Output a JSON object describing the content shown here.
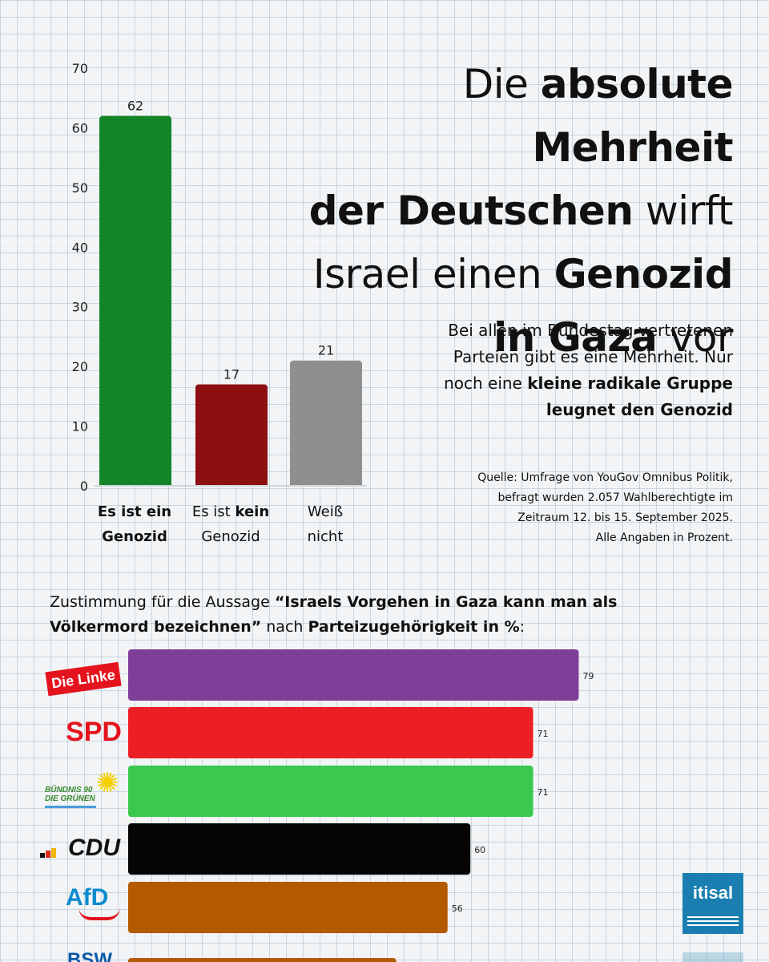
{
  "headline": {
    "p1": "Die ",
    "b1": "absolute Mehrheit",
    "b2": "der Deutschen",
    "p2": " wirft",
    "p3": "Israel einen ",
    "b3": "Genozid",
    "b4": "in Gaza",
    "p4": " vor"
  },
  "subtext": {
    "line1": "Bei allen im Bundestag vertretenen",
    "line2": "Parteien gibt es eine Mehrheit. Nur",
    "p3": "noch eine ",
    "b3": "kleine radikale Gruppe",
    "b4": "leugnet den Genozid"
  },
  "source": {
    "line1": "Quelle: Umfrage von YouGov Omnibus Politik,",
    "line2": "befragt wurden 2.057 Wahlberechtigte im",
    "line3": "Zeitraum 12. bis 15. September 2025.",
    "line4": "Alle Angaben in Prozent."
  },
  "statement": {
    "p1": "Zustimmung für die Aussage ",
    "b1": "“Israels Vorgehen in Gaza kann man als Völkermord bezeichnen”",
    "p2": " nach ",
    "b2": "Parteizugehörigkeit in %",
    "p3": ":"
  },
  "logos": {
    "linke": "Die Linke",
    "spd": "SPD",
    "gruene_line1": "BÜNDNIS 90",
    "gruene_line2": "DIE GRÜNEN",
    "cdu": "CDU",
    "afd": "AfD",
    "brand": "itisal",
    "partial": "BSW"
  },
  "colors": {
    "bar_genozid": "#148428",
    "bar_kein": "#8c0f12",
    "bar_weiss": "#8f8f8f",
    "linke": "#7f3f98",
    "spd": "#ec1f25",
    "gruene": "#3ac84e",
    "cdu": "#050505",
    "afd": "#b35a00"
  },
  "chart_data": [
    {
      "type": "bar",
      "categories": [
        "Es ist ein Genozid",
        "Es ist kein Genozid",
        "Weiß nicht"
      ],
      "category_lines": [
        [
          {
            "t": "Es ist ein",
            "b": true
          },
          {
            "t": "Genozid",
            "b": true
          }
        ],
        [
          {
            "t": "Es ist ",
            "b": false,
            "t2": "kein"
          },
          {
            "t": "Genozid",
            "b": false
          }
        ],
        [
          {
            "t": "Weiß",
            "b": false
          },
          {
            "t": "nicht",
            "b": false
          }
        ]
      ],
      "values": [
        62,
        17,
        21
      ],
      "ylim": [
        0,
        70
      ],
      "yticks": [
        0,
        10,
        20,
        30,
        40,
        50,
        60,
        70
      ],
      "bar_colors": [
        "#148428",
        "#8c0f12",
        "#8f8f8f"
      ],
      "data_labels": true,
      "grid": false
    },
    {
      "type": "bar",
      "orientation": "horizontal",
      "categories": [
        "Die Linke",
        "SPD",
        "Bündnis 90 / Die Grünen",
        "CDU",
        "AfD",
        "BSW"
      ],
      "values": [
        79,
        71,
        71,
        60,
        56,
        null
      ],
      "bar_colors": [
        "#7f3f98",
        "#ec1f25",
        "#3ac84e",
        "#050505",
        "#b35a00",
        "#b35a00"
      ],
      "xlim": [
        0,
        100
      ],
      "data_labels": true
    }
  ]
}
